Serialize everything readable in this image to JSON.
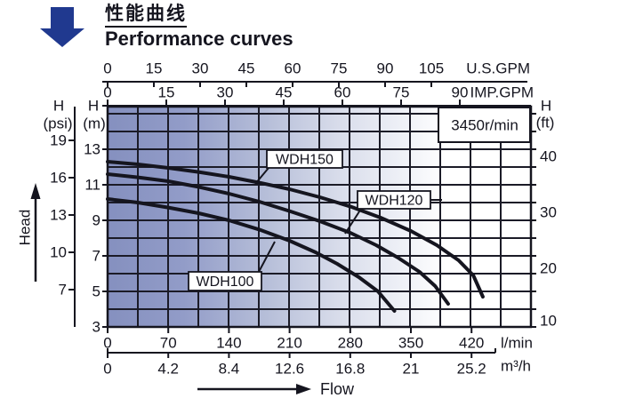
{
  "header": {
    "title_cn": "性能曲线",
    "title_en": "Performance curves",
    "arrow_color": "#20398f"
  },
  "chart_data": {
    "type": "line",
    "title": "Performance curves",
    "rpm_label": "3450r/min",
    "flow_label": "Flow",
    "head_label": "Head",
    "x_axes": [
      {
        "name": "us-gpm",
        "unit": "U.S.GPM",
        "ticks": [
          "0",
          "15",
          "30",
          "45",
          "60",
          "75",
          "90",
          "105"
        ]
      },
      {
        "name": "imp-gpm",
        "unit": "IMP.GPM",
        "ticks": [
          "0",
          "15",
          "30",
          "45",
          "60",
          "75",
          "90"
        ]
      },
      {
        "name": "l-min",
        "unit": "l/min",
        "ticks": [
          "0",
          "70",
          "140",
          "210",
          "280",
          "350",
          "420"
        ]
      },
      {
        "name": "m3-h",
        "unit": "m³/h",
        "ticks": [
          "0",
          "4.2",
          "8.4",
          "12.6",
          "16.8",
          "21",
          "25.2"
        ]
      }
    ],
    "y_axes": [
      {
        "name": "psi",
        "label": "H",
        "unit": "(psi)",
        "ticks": [
          "19",
          "16",
          "13",
          "10",
          "7"
        ]
      },
      {
        "name": "m",
        "label": "H",
        "unit": "(m)",
        "ticks": [
          "13",
          "11",
          "9",
          "7",
          "5",
          "3"
        ]
      },
      {
        "name": "ft",
        "label": "H",
        "unit": "(ft)",
        "ticks": [
          "40",
          "30",
          "20",
          "10"
        ]
      }
    ],
    "xlabel": "Flow (l/min, m³/h, U.S.GPM, IMP.GPM)",
    "ylabel": "Head (m, psi, ft)",
    "xlim_lmin": [
      0,
      488
    ],
    "ylim_m": [
      3,
      15.4
    ],
    "grid": true,
    "series": [
      {
        "name": "WDH150",
        "points_lmin_m": [
          [
            0,
            12.3
          ],
          [
            35,
            12.15
          ],
          [
            70,
            11.95
          ],
          [
            105,
            11.72
          ],
          [
            140,
            11.45
          ],
          [
            175,
            11.12
          ],
          [
            210,
            10.75
          ],
          [
            245,
            10.3
          ],
          [
            280,
            9.78
          ],
          [
            315,
            9.15
          ],
          [
            350,
            8.4
          ],
          [
            380,
            7.6
          ],
          [
            405,
            6.75
          ],
          [
            422,
            5.9
          ],
          [
            433,
            4.7
          ]
        ]
      },
      {
        "name": "WDH120",
        "points_lmin_m": [
          [
            0,
            11.6
          ],
          [
            35,
            11.42
          ],
          [
            70,
            11.2
          ],
          [
            105,
            10.88
          ],
          [
            140,
            10.5
          ],
          [
            175,
            10.05
          ],
          [
            210,
            9.52
          ],
          [
            245,
            8.95
          ],
          [
            280,
            8.3
          ],
          [
            310,
            7.6
          ],
          [
            335,
            6.9
          ],
          [
            360,
            6.1
          ],
          [
            378,
            5.3
          ],
          [
            393,
            4.3
          ]
        ]
      },
      {
        "name": "WDH100",
        "points_lmin_m": [
          [
            0,
            10.2
          ],
          [
            35,
            10.0
          ],
          [
            70,
            9.72
          ],
          [
            105,
            9.4
          ],
          [
            140,
            9.0
          ],
          [
            175,
            8.48
          ],
          [
            210,
            7.85
          ],
          [
            240,
            7.2
          ],
          [
            265,
            6.55
          ],
          [
            290,
            5.8
          ],
          [
            312,
            5.0
          ],
          [
            331,
            3.9
          ]
        ]
      }
    ],
    "colors": {
      "ink": "#15151f",
      "grid": "#1b1b27",
      "curve": "#15151f",
      "label_bg": "#ffffff",
      "gradient": [
        "#8590bf",
        "#929cc8",
        "#b7bfd9",
        "#d9ddeb",
        "#eff1f7",
        "#ffffff"
      ]
    }
  }
}
